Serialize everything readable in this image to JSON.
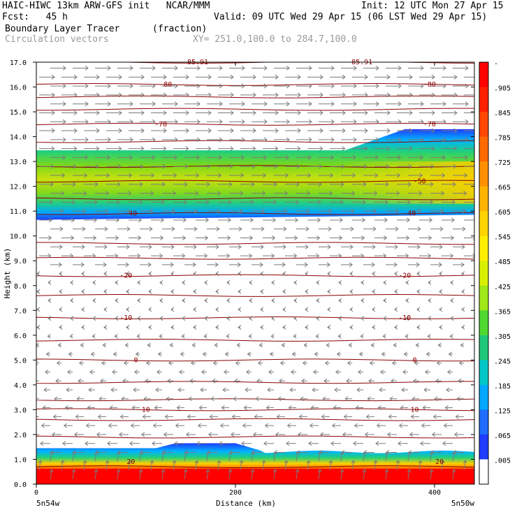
{
  "header": {
    "line1_left": "HAIC-HIWC 13km ARW-GFS init   NCAR/MMM",
    "line1_right": "Init: 12 UTC Mon 27 Apr 15",
    "line2_left": "Fcst:   45 h",
    "line2_right": "Valid: 09 UTC Wed 29 Apr 15 (06 LST Wed 29 Apr 15)",
    "field_name": "Boundary Layer Tracer",
    "field_units": "(fraction)",
    "vector_name": "Circulation vectors",
    "xy_range": "XY= 251.0,100.0 to 284.7,100.0"
  },
  "chart_data": {
    "type": "heatmap",
    "xlabel": "Distance (km)",
    "ylabel": "Height (km)",
    "xlim": [
      0,
      440
    ],
    "ylim": [
      0.0,
      17.0
    ],
    "x_ticks": [
      0,
      200,
      400
    ],
    "y_ticks": [
      "0.0",
      "1.0",
      "2.0",
      "3.0",
      "4.0",
      "5.0",
      "6.0",
      "7.0",
      "8.0",
      "9.0",
      "10.0",
      "11.0",
      "12.0",
      "13.0",
      "14.0",
      "15.0",
      "16.0",
      "17.0"
    ],
    "x_end_labels": {
      "left": "5n54w",
      "right": "5n50w"
    },
    "colorbar_levels": [
      "-",
      ".905",
      ".845",
      ".785",
      ".725",
      ".665",
      ".605",
      ".545",
      ".485",
      ".425",
      ".365",
      ".305",
      ".245",
      ".185",
      ".125",
      ".065",
      ".005"
    ],
    "temperature_contours": [
      {
        "label": "20",
        "height": 0.7
      },
      {
        "label": "10",
        "height": 3.0
      },
      {
        "label": "0",
        "height": 5.0
      },
      {
        "label": "-10",
        "height": 6.7
      },
      {
        "label": "-20",
        "height": 8.4
      },
      {
        "label": "-40",
        "height": 10.9
      },
      {
        "label": "-50",
        "height": 12.2
      },
      {
        "label": "-70",
        "height": 14.5
      },
      {
        "label": "-80",
        "height": 16.1
      },
      {
        "label": "-85.9",
        "height": 17.0
      }
    ],
    "contour_label_positions": [
      {
        "text": "20",
        "x": 95,
        "y": 0.9
      },
      {
        "text": "20",
        "x": 405,
        "y": 0.9
      },
      {
        "text": "10",
        "x": 110,
        "y": 3.0
      },
      {
        "text": "10",
        "x": 380,
        "y": 3.0
      },
      {
        "text": "0",
        "x": 100,
        "y": 5.0
      },
      {
        "text": "0",
        "x": 380,
        "y": 5.0
      },
      {
        "text": "-10",
        "x": 90,
        "y": 6.7
      },
      {
        "text": "-10",
        "x": 370,
        "y": 6.7
      },
      {
        "text": "-20",
        "x": 90,
        "y": 8.4
      },
      {
        "text": "-20",
        "x": 370,
        "y": 8.4
      },
      {
        "text": "-40",
        "x": 95,
        "y": 10.9
      },
      {
        "text": "-40",
        "x": 375,
        "y": 10.9
      },
      {
        "text": "-50",
        "x": 385,
        "y": 12.2
      },
      {
        "text": "-70",
        "x": 125,
        "y": 14.5
      },
      {
        "text": "-70",
        "x": 395,
        "y": 14.5
      },
      {
        "text": "-80",
        "x": 130,
        "y": 16.1
      },
      {
        "text": "-80",
        "x": 395,
        "y": 16.1
      },
      {
        "text": "-85.91",
        "x": 160,
        "y": 17.0
      },
      {
        "text": "-85.91",
        "x": 325,
        "y": 17.0
      }
    ]
  }
}
